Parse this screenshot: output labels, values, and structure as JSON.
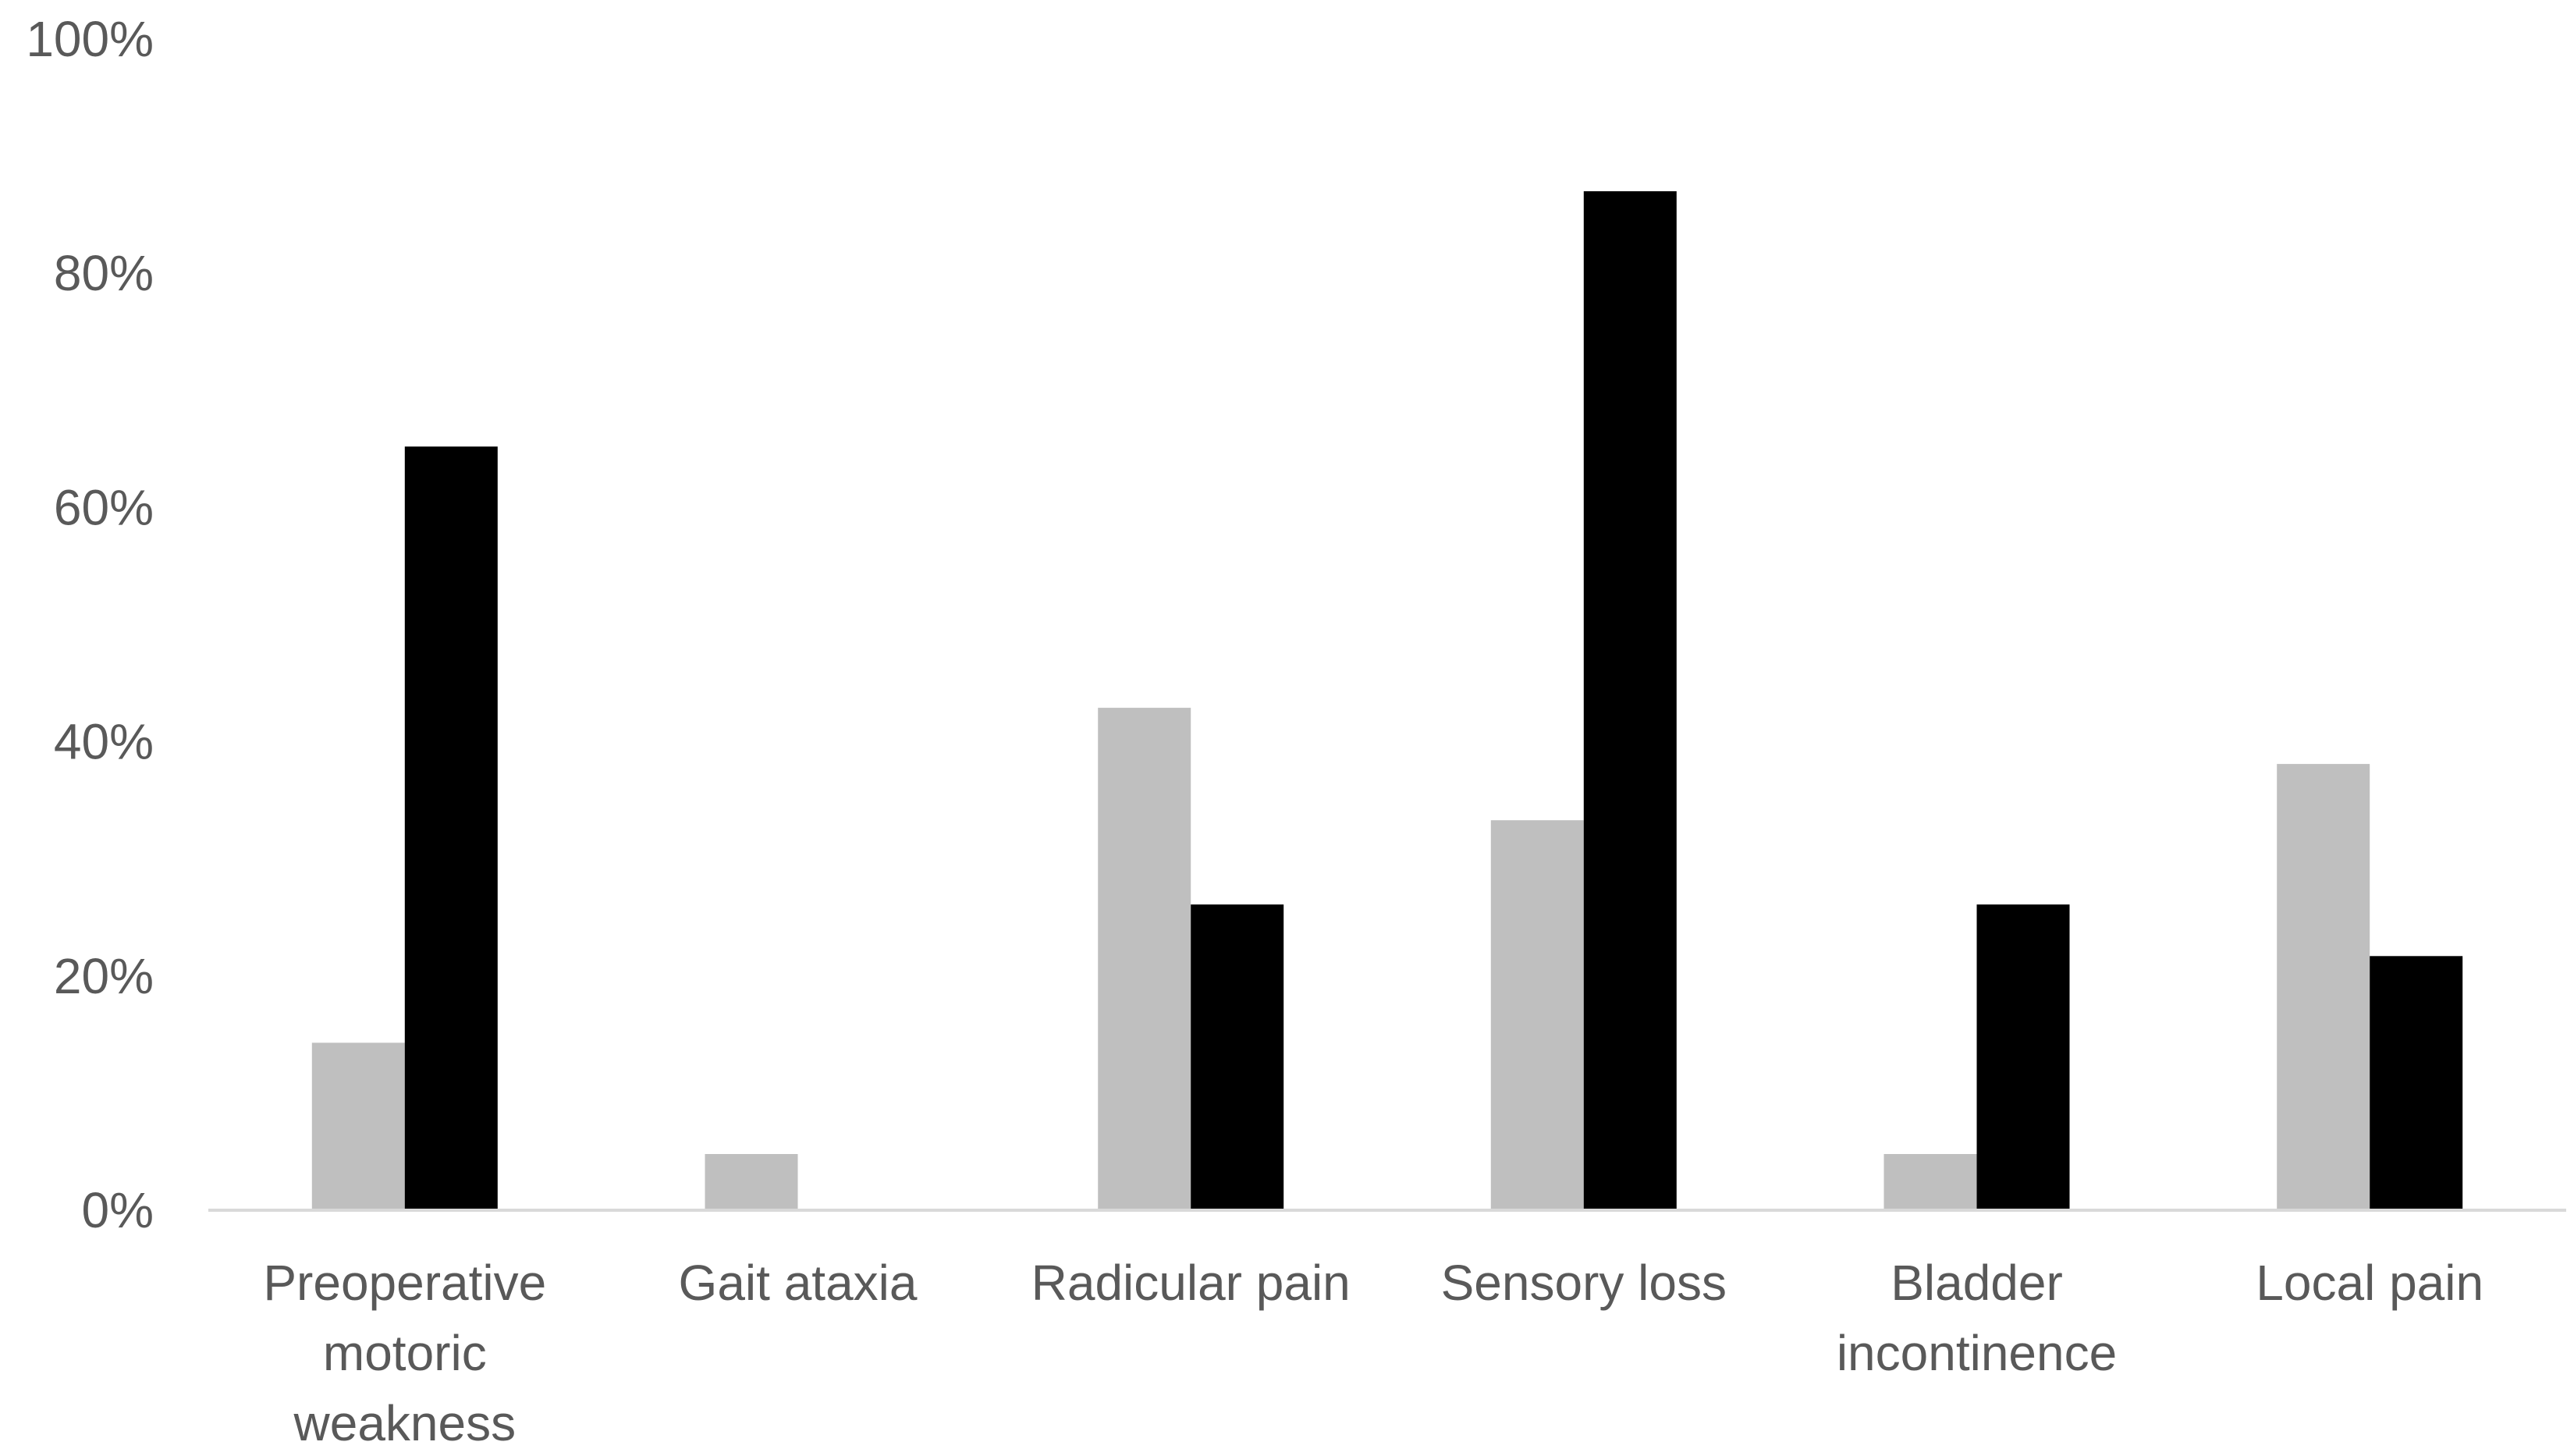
{
  "chart_data": {
    "type": "bar",
    "categories": [
      [
        "Preoperative",
        "motoric",
        "weakness"
      ],
      [
        "Gait ataxia"
      ],
      [
        "Radicular pain"
      ],
      [
        "Sensory loss"
      ],
      [
        "Bladder",
        "incontinence"
      ],
      [
        "Local pain"
      ]
    ],
    "series": [
      {
        "color": "#bfbfbf",
        "values": [
          14.3,
          4.8,
          42.9,
          33.3,
          4.8,
          38.1
        ]
      },
      {
        "color": "#000000",
        "values": [
          65.2,
          0,
          26.1,
          87.0,
          26.1,
          21.7
        ]
      }
    ],
    "ylim": [
      0,
      100
    ],
    "yticks": [
      0,
      20,
      40,
      60,
      80,
      100
    ],
    "ytick_labels": [
      "0%",
      "20%",
      "40%",
      "60%",
      "80%",
      "100%"
    ],
    "grid": false,
    "legend": "none",
    "xlabel": "",
    "ylabel": "",
    "title": ""
  }
}
